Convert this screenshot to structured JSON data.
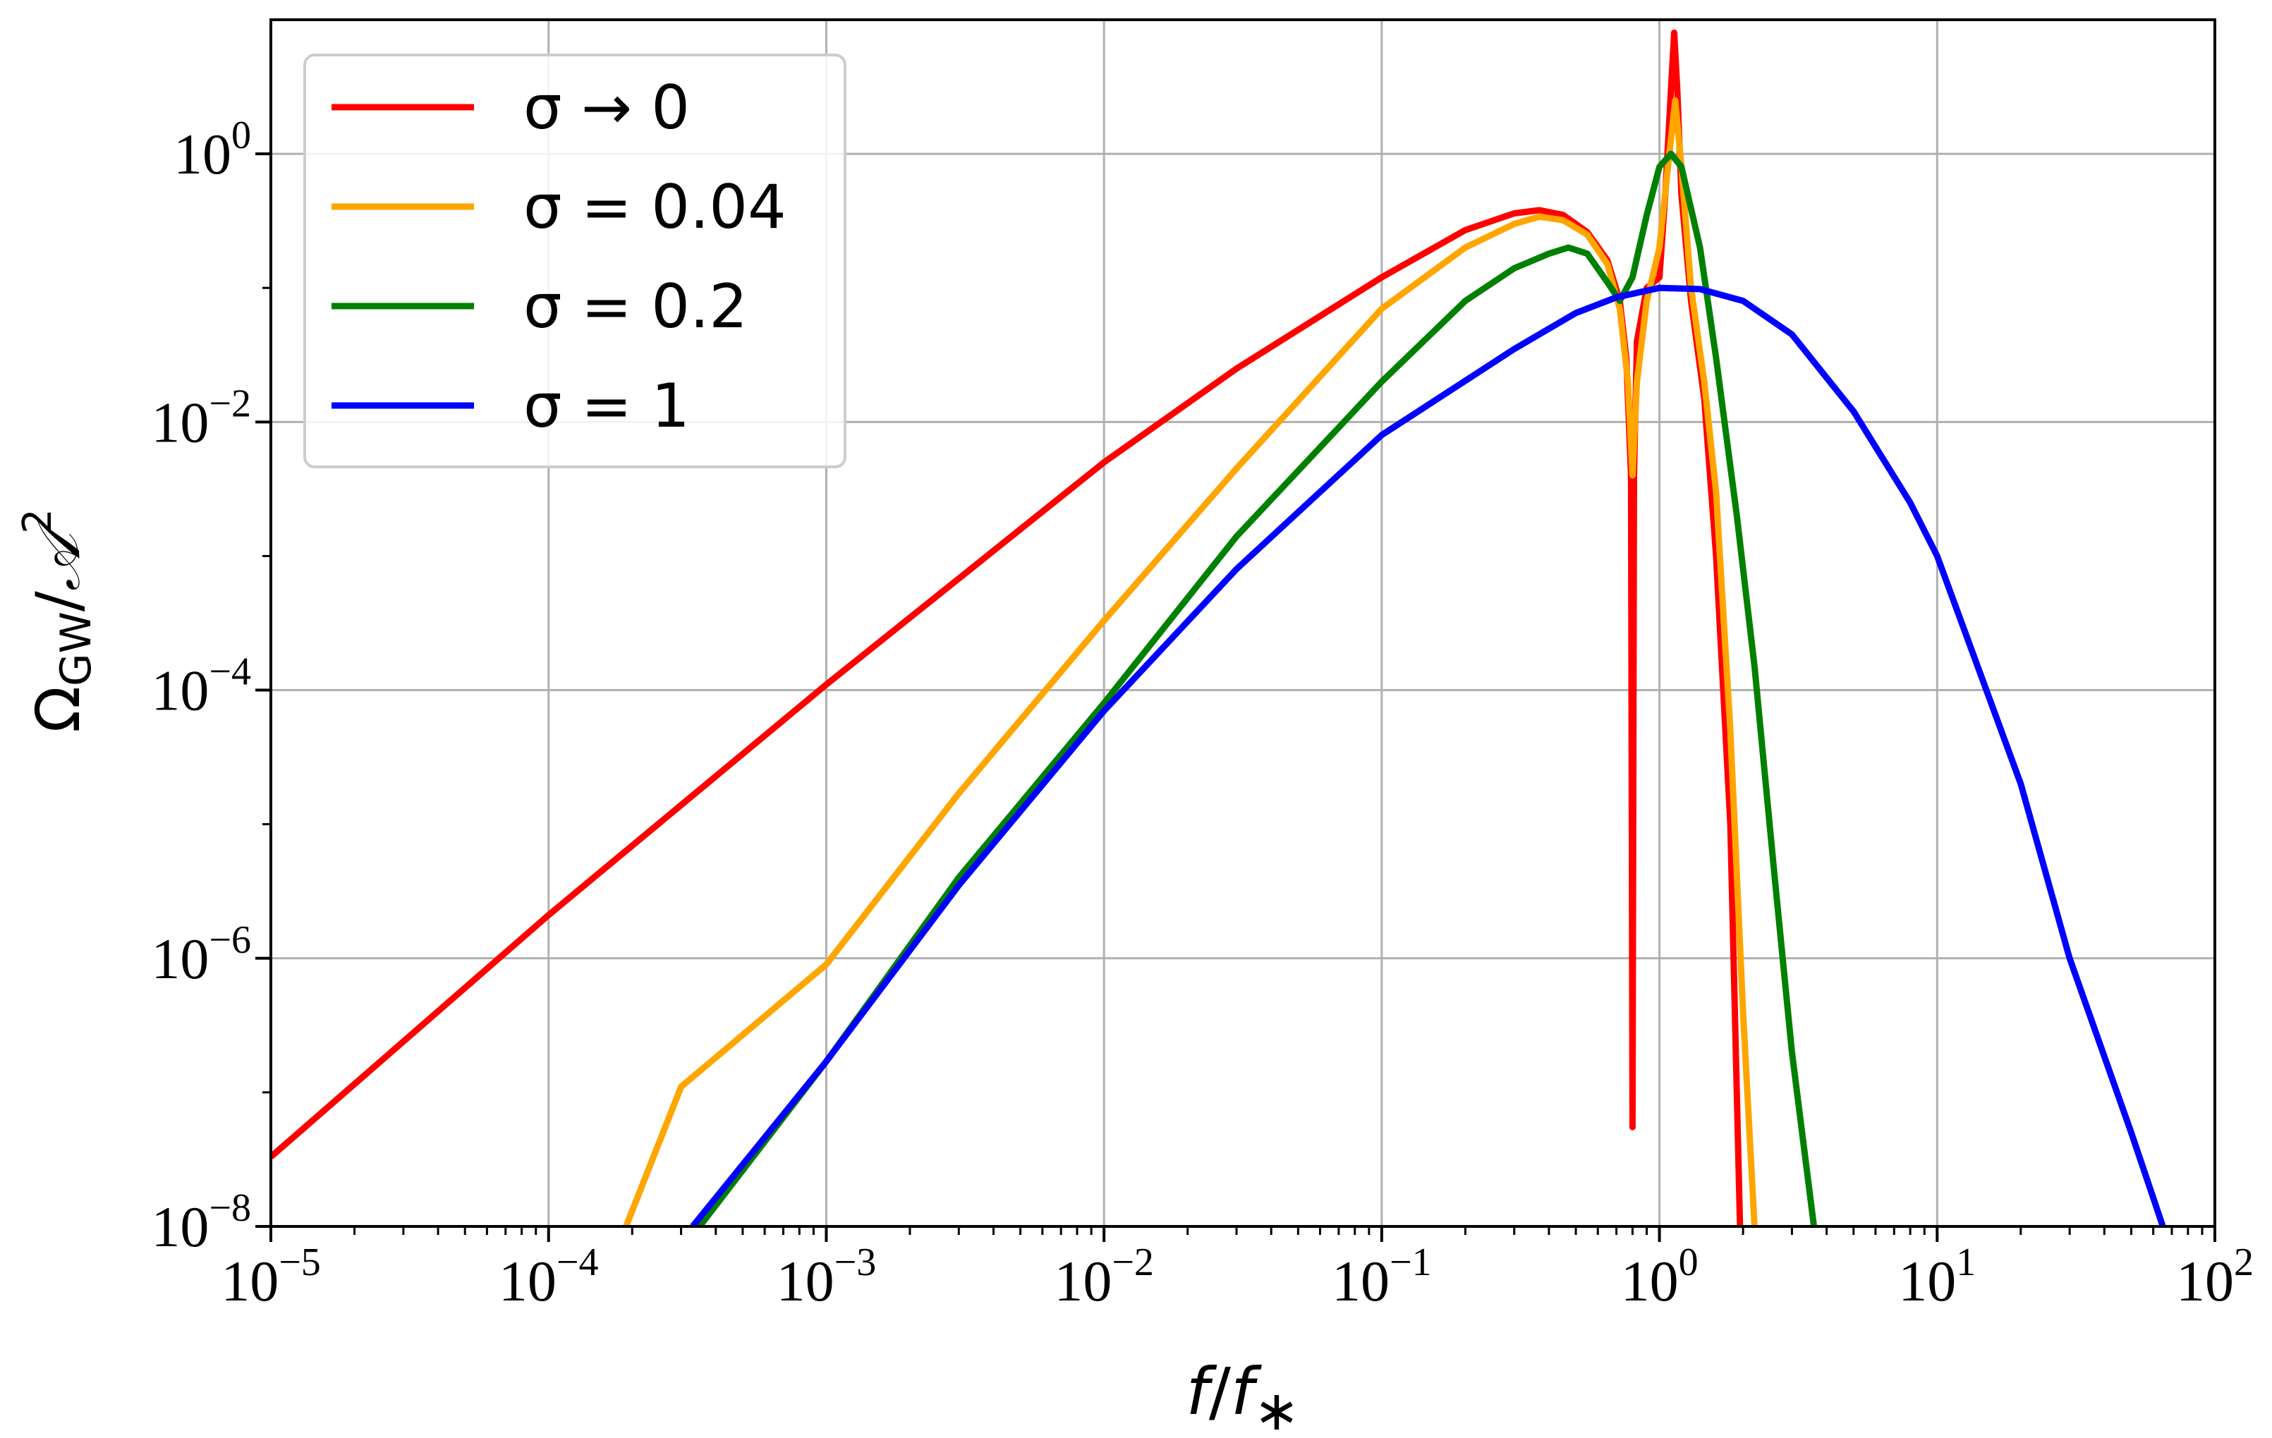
{
  "chart_data": {
    "type": "line",
    "xlabel": "f/f_*",
    "ylabel": "Ω_GW/𝒜²",
    "x_scale": "log",
    "y_scale": "log",
    "xlim": [
      1e-05,
      100
    ],
    "ylim": [
      1e-08,
      10
    ],
    "x_ticks": [
      {
        "base": "10",
        "exp": "−5"
      },
      {
        "base": "10",
        "exp": "−4"
      },
      {
        "base": "10",
        "exp": "−3"
      },
      {
        "base": "10",
        "exp": "−2"
      },
      {
        "base": "10",
        "exp": "−1"
      },
      {
        "base": "10",
        "exp": "0"
      },
      {
        "base": "10",
        "exp": "1"
      },
      {
        "base": "10",
        "exp": "2"
      }
    ],
    "y_ticks": [
      {
        "base": "10",
        "exp": "−8"
      },
      {
        "base": "10",
        "exp": "−6"
      },
      {
        "base": "10",
        "exp": "−4"
      },
      {
        "base": "10",
        "exp": "−2"
      },
      {
        "base": "10",
        "exp": "0"
      }
    ],
    "grid": true,
    "legend_position": "top-left",
    "series": [
      {
        "name": "σ → 0",
        "color": "#ff0000",
        "points": [
          [
            1e-05,
            3.3e-08
          ],
          [
            0.0001,
            2.1e-06
          ],
          [
            0.001,
            0.00011
          ],
          [
            0.01,
            0.005
          ],
          [
            0.03,
            0.025
          ],
          [
            0.1,
            0.12
          ],
          [
            0.2,
            0.27
          ],
          [
            0.3,
            0.36
          ],
          [
            0.37,
            0.38
          ],
          [
            0.45,
            0.35
          ],
          [
            0.55,
            0.26
          ],
          [
            0.65,
            0.16
          ],
          [
            0.72,
            0.08
          ],
          [
            0.76,
            0.03
          ],
          [
            0.79,
            0.004
          ],
          [
            0.8,
            5.5e-08
          ],
          [
            0.81,
            0.004
          ],
          [
            0.83,
            0.04
          ],
          [
            0.9,
            0.1
          ],
          [
            1.0,
            0.12
          ],
          [
            1.05,
            0.5
          ],
          [
            1.1,
            3.0
          ],
          [
            1.13,
            8.0
          ],
          [
            1.16,
            3.0
          ],
          [
            1.2,
            0.5
          ],
          [
            1.3,
            0.08
          ],
          [
            1.45,
            0.015
          ],
          [
            1.6,
            0.001
          ],
          [
            1.8,
            1e-05
          ],
          [
            1.95,
            1e-08
          ]
        ]
      },
      {
        "name": "σ = 0.04",
        "color": "#ffa500",
        "points": [
          [
            0.00019,
            1e-08
          ],
          [
            0.0003,
            1.1e-07
          ],
          [
            0.001,
            9e-07
          ],
          [
            0.003,
            1.7e-05
          ],
          [
            0.01,
            0.00033
          ],
          [
            0.03,
            0.0045
          ],
          [
            0.1,
            0.07
          ],
          [
            0.2,
            0.2
          ],
          [
            0.3,
            0.3
          ],
          [
            0.37,
            0.34
          ],
          [
            0.45,
            0.32
          ],
          [
            0.55,
            0.25
          ],
          [
            0.65,
            0.15
          ],
          [
            0.72,
            0.07
          ],
          [
            0.77,
            0.02
          ],
          [
            0.8,
            0.004
          ],
          [
            0.83,
            0.02
          ],
          [
            0.9,
            0.08
          ],
          [
            1.0,
            0.2
          ],
          [
            1.08,
            0.9
          ],
          [
            1.14,
            2.5
          ],
          [
            1.2,
            0.8
          ],
          [
            1.3,
            0.1
          ],
          [
            1.45,
            0.02
          ],
          [
            1.6,
            0.003
          ],
          [
            1.8,
            5e-05
          ],
          [
            2.0,
            4e-07
          ],
          [
            2.2,
            1e-08
          ]
        ]
      },
      {
        "name": "σ = 0.2",
        "color": "#008000",
        "points": [
          [
            0.00035,
            1e-08
          ],
          [
            0.001,
            1.7e-07
          ],
          [
            0.003,
            4e-06
          ],
          [
            0.01,
            8e-05
          ],
          [
            0.03,
            0.0014
          ],
          [
            0.1,
            0.02
          ],
          [
            0.2,
            0.08
          ],
          [
            0.3,
            0.14
          ],
          [
            0.4,
            0.18
          ],
          [
            0.47,
            0.2
          ],
          [
            0.55,
            0.18
          ],
          [
            0.65,
            0.11
          ],
          [
            0.72,
            0.08
          ],
          [
            0.8,
            0.12
          ],
          [
            0.9,
            0.35
          ],
          [
            1.0,
            0.8
          ],
          [
            1.1,
            1.0
          ],
          [
            1.2,
            0.8
          ],
          [
            1.4,
            0.2
          ],
          [
            1.6,
            0.03
          ],
          [
            1.9,
            0.002
          ],
          [
            2.2,
            0.00015
          ],
          [
            2.6,
            4e-06
          ],
          [
            3.0,
            2e-07
          ],
          [
            3.6,
            1e-08
          ]
        ]
      },
      {
        "name": "σ = 1",
        "color": "#0000ff",
        "points": [
          [
            0.00033,
            1e-08
          ],
          [
            0.001,
            1.7e-07
          ],
          [
            0.003,
            3.5e-06
          ],
          [
            0.01,
            7e-05
          ],
          [
            0.03,
            0.0008
          ],
          [
            0.1,
            0.008
          ],
          [
            0.3,
            0.035
          ],
          [
            0.5,
            0.065
          ],
          [
            0.7,
            0.085
          ],
          [
            1.0,
            0.1
          ],
          [
            1.4,
            0.098
          ],
          [
            2.0,
            0.08
          ],
          [
            3.0,
            0.045
          ],
          [
            5.0,
            0.012
          ],
          [
            8.0,
            0.0025
          ],
          [
            10,
            0.001
          ],
          [
            20,
            2e-05
          ],
          [
            30,
            1e-06
          ],
          [
            50,
            5e-08
          ],
          [
            65,
            1e-08
          ]
        ]
      }
    ]
  }
}
